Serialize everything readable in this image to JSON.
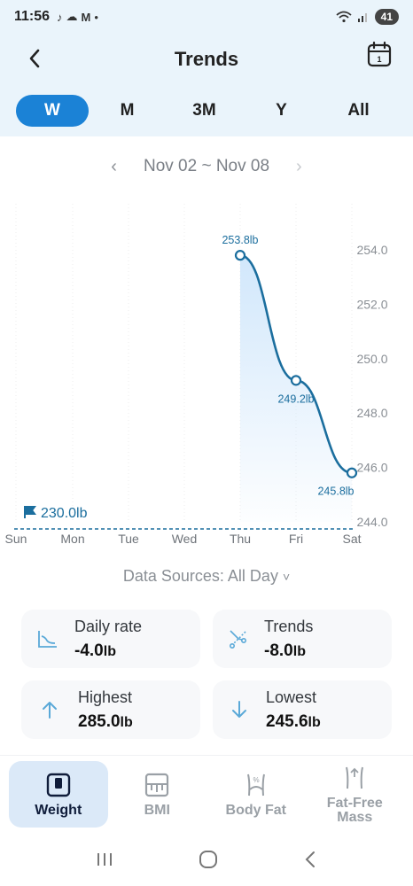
{
  "status_bar": {
    "time": "11:56",
    "left_icons": [
      "tiktok-icon",
      "cloud-icon",
      "gmail-icon",
      "dot-icon"
    ],
    "battery": "41"
  },
  "header": {
    "title": "Trends"
  },
  "period_tabs": [
    {
      "label": "W",
      "active": true
    },
    {
      "label": "M",
      "active": false
    },
    {
      "label": "3M",
      "active": false
    },
    {
      "label": "Y",
      "active": false
    },
    {
      "label": "All",
      "active": false
    }
  ],
  "date_range": {
    "label": "Nov 02 ~ Nov 08"
  },
  "chart_data": {
    "type": "line",
    "categories": [
      "Sun",
      "Mon",
      "Tue",
      "Wed",
      "Thu",
      "Fri",
      "Sat"
    ],
    "series": [
      {
        "values": [
          null,
          null,
          null,
          null,
          253.8,
          249.2,
          245.8
        ]
      }
    ],
    "data_labels": [
      "",
      "",
      "",
      "",
      "253.8lb",
      "249.2lb",
      "245.8lb"
    ],
    "yticks": [
      "254.0",
      "252.0",
      "250.0",
      "248.0",
      "246.0",
      "244.0"
    ],
    "ylim": [
      244.0,
      254.0
    ],
    "goal": {
      "value": 230.0,
      "label": "230.0lb"
    },
    "line_color": "#1b6e9e",
    "area_color": "#cfe6fb"
  },
  "data_sources": {
    "label": "Data Sources: All Day"
  },
  "stats": {
    "daily_rate": {
      "label": "Daily rate",
      "value": "-4.0",
      "unit": "lb"
    },
    "trends": {
      "label": "Trends",
      "value": "-8.0",
      "unit": "lb"
    },
    "highest": {
      "label": "Highest",
      "value": "285.0",
      "unit": "lb"
    },
    "lowest": {
      "label": "Lowest",
      "value": "245.6",
      "unit": "lb"
    }
  },
  "bottom_nav": [
    {
      "label": "Weight",
      "active": true
    },
    {
      "label": "BMI",
      "active": false
    },
    {
      "label": "Body Fat",
      "active": false
    },
    {
      "label": "Fat-Free Mass",
      "active": false
    }
  ],
  "colors": {
    "accent": "#1b82d6",
    "header_bg": "#eaf4fb",
    "stat_icon": "#5aa9d8"
  }
}
